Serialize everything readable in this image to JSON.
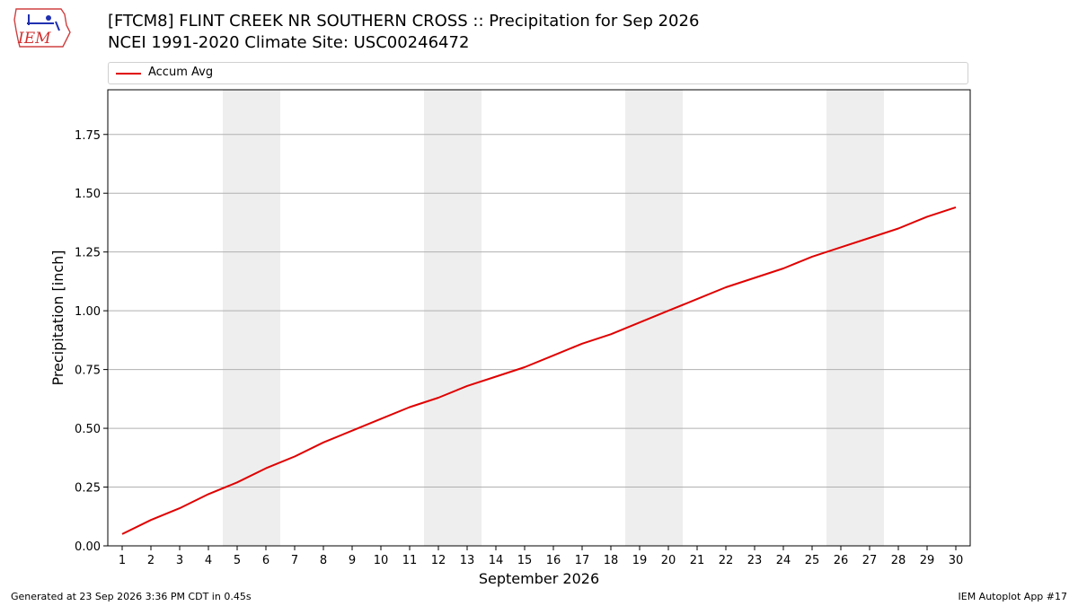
{
  "header": {
    "title_line1": "[FTCM8] FLINT CREEK NR SOUTHERN CROSS :: Precipitation for Sep 2026",
    "title_line2": "NCEI 1991-2020 Climate Site: USC00246472",
    "logo_text": "IEM"
  },
  "footer": {
    "generated": "Generated at 23 Sep 2026 3:36 PM CDT in 0.45s",
    "app": "IEM Autoplot App #17"
  },
  "legend": {
    "label": "Accum Avg",
    "color": "#e00000"
  },
  "chart_data": {
    "type": "line",
    "title": "[FTCM8] FLINT CREEK NR SOUTHERN CROSS :: Precipitation for Sep 2026",
    "subtitle": "NCEI 1991-2020 Climate Site: USC00246472",
    "xlabel": "September 2026",
    "ylabel": "Precipitation [inch]",
    "x": [
      1,
      2,
      3,
      4,
      5,
      6,
      7,
      8,
      9,
      10,
      11,
      12,
      13,
      14,
      15,
      16,
      17,
      18,
      19,
      20,
      21,
      22,
      23,
      24,
      25,
      26,
      27,
      28,
      29,
      30
    ],
    "xlim": [
      0.5,
      30.5
    ],
    "ylim": [
      0,
      1.94
    ],
    "yticks": [
      0.0,
      0.25,
      0.5,
      0.75,
      1.0,
      1.25,
      1.5,
      1.75
    ],
    "ytick_labels": [
      "0.00",
      "0.25",
      "0.50",
      "0.75",
      "1.00",
      "1.25",
      "1.50",
      "1.75"
    ],
    "grid": "horizontal",
    "legend_position": "top",
    "weekend_shading": [
      [
        4.5,
        6.5
      ],
      [
        11.5,
        13.5
      ],
      [
        18.5,
        20.5
      ],
      [
        25.5,
        27.5
      ]
    ],
    "series": [
      {
        "name": "Accum Avg",
        "color": "#e00000",
        "values": [
          0.05,
          0.11,
          0.16,
          0.22,
          0.27,
          0.33,
          0.38,
          0.44,
          0.49,
          0.54,
          0.59,
          0.63,
          0.68,
          0.72,
          0.76,
          0.81,
          0.86,
          0.9,
          0.95,
          1.0,
          1.05,
          1.1,
          1.14,
          1.18,
          1.23,
          1.27,
          1.31,
          1.35,
          1.4,
          1.44
        ]
      }
    ]
  }
}
